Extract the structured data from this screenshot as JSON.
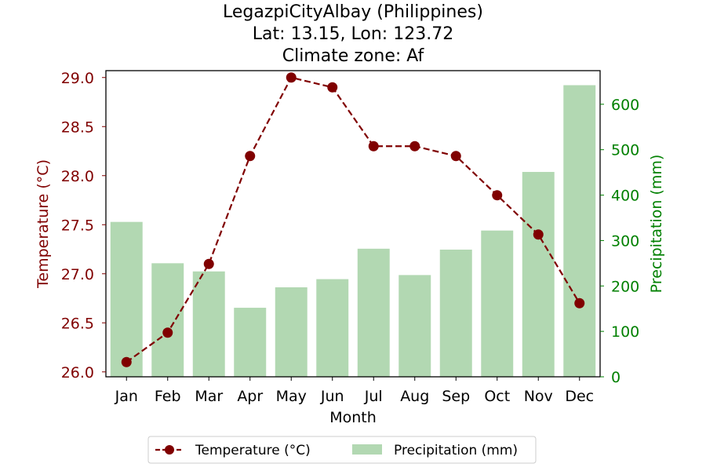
{
  "chart_data": {
    "type": "bar+line",
    "title_lines": [
      "LegazpiCityAlbay (Philippines)",
      "Lat: 13.15, Lon: 123.72",
      "Climate zone: Af"
    ],
    "xlabel": "Month",
    "categories": [
      "Jan",
      "Feb",
      "Mar",
      "Apr",
      "May",
      "Jun",
      "Jul",
      "Aug",
      "Sep",
      "Oct",
      "Nov",
      "Dec"
    ],
    "series": [
      {
        "name": "Temperature (°C)",
        "type": "line",
        "axis": "left",
        "values": [
          26.1,
          26.4,
          27.1,
          28.2,
          29.0,
          28.9,
          28.3,
          28.3,
          28.2,
          27.8,
          27.4,
          26.7
        ]
      },
      {
        "name": "Precipitation (mm)",
        "type": "bar",
        "axis": "right",
        "values": [
          341,
          250,
          232,
          152,
          197,
          215,
          282,
          224,
          280,
          322,
          451,
          642
        ]
      }
    ],
    "y_left": {
      "label": "Temperature (°C)",
      "lim": [
        25.95,
        29.07
      ],
      "ticks": [
        26.0,
        26.5,
        27.0,
        27.5,
        28.0,
        28.5,
        29.0
      ],
      "tick_labels": [
        "26.0",
        "26.5",
        "27.0",
        "27.5",
        "28.0",
        "28.5",
        "29.0"
      ]
    },
    "y_right": {
      "label": "Precipitation (mm)",
      "lim": [
        0,
        674
      ],
      "ticks": [
        0,
        100,
        200,
        300,
        400,
        500,
        600
      ],
      "tick_labels": [
        "0",
        "100",
        "200",
        "300",
        "400",
        "500",
        "600"
      ]
    },
    "legend": {
      "placement": "bottom-center",
      "entries": [
        "Temperature (°C)",
        "Precipitation (mm)"
      ]
    },
    "grid": false,
    "colors": {
      "temperature": "#800000",
      "precipitation": "#b2d8b2",
      "left_axis": "#800000",
      "right_axis": "#008000",
      "frame": "#000000"
    }
  }
}
